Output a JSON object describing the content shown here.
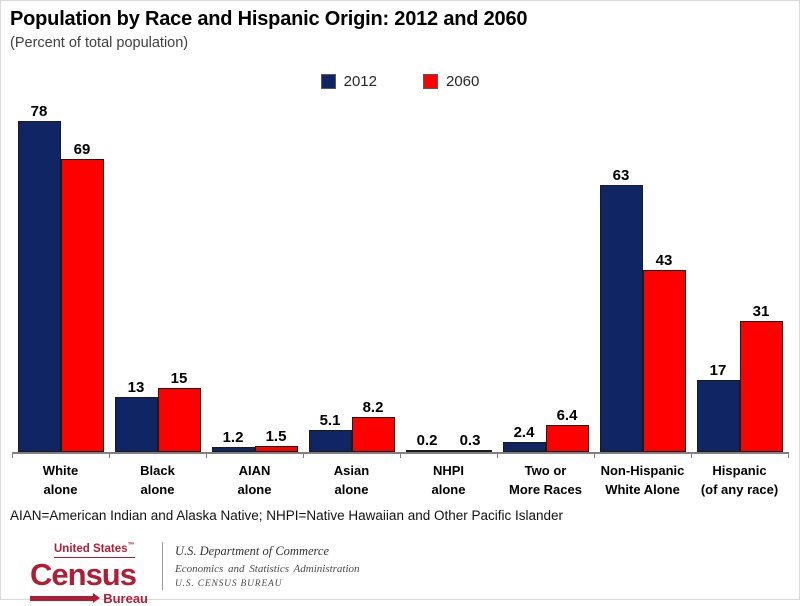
{
  "title": "Population by Race and Hispanic Origin: 2012 and 2060",
  "subtitle": "(Percent of total population)",
  "chart_data": {
    "type": "bar",
    "categories": [
      "White\nalone",
      "Black\nalone",
      "AIAN\nalone",
      "Asian\nalone",
      "NHPI\nalone",
      "Two or\nMore Races",
      "Non-Hispanic\nWhite Alone",
      "Hispanic\n(of any race)"
    ],
    "series": [
      {
        "name": "2012",
        "color": "#0F2564",
        "values": [
          78,
          13,
          1.2,
          5.1,
          0.2,
          2.4,
          63,
          17
        ]
      },
      {
        "name": "2060",
        "color": "#FE0000",
        "values": [
          69,
          15,
          1.5,
          8.2,
          0.3,
          6.4,
          43,
          31
        ]
      }
    ],
    "title": "Population by Race and Hispanic Origin: 2012 and 2060",
    "xlabel": "",
    "ylabel": "Percent of total population",
    "ylim": [
      0,
      83
    ],
    "grid": false,
    "legend_position": "top-center",
    "value_labels": true,
    "axis_color": "#808080"
  },
  "footnote": "AIAN=American Indian and Alaska Native; NHPI=Native Hawaiian and Other Pacific Islander",
  "footer": {
    "logo": {
      "line1": "United States",
      "tm": "™",
      "name": "Census",
      "sub": "Bureau",
      "color": "#AF1E37"
    },
    "agency_lines": [
      "U.S. Department of Commerce",
      "Economics and Statistics Administration",
      "U.S. CENSUS BUREAU"
    ]
  }
}
